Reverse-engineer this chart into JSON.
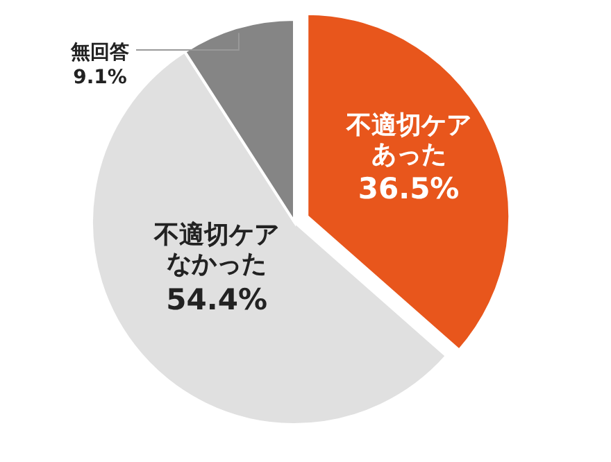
{
  "chart_data": {
    "type": "pie",
    "categories": [
      "不適切ケアあった",
      "不適切ケアなかった",
      "無回答"
    ],
    "values": [
      36.5,
      54.4,
      9.1
    ],
    "colors": [
      "#e8561c",
      "#e0e0e0",
      "#858585"
    ],
    "value_labels": [
      "36.5%",
      "54.4%",
      "9.1%"
    ]
  }
}
